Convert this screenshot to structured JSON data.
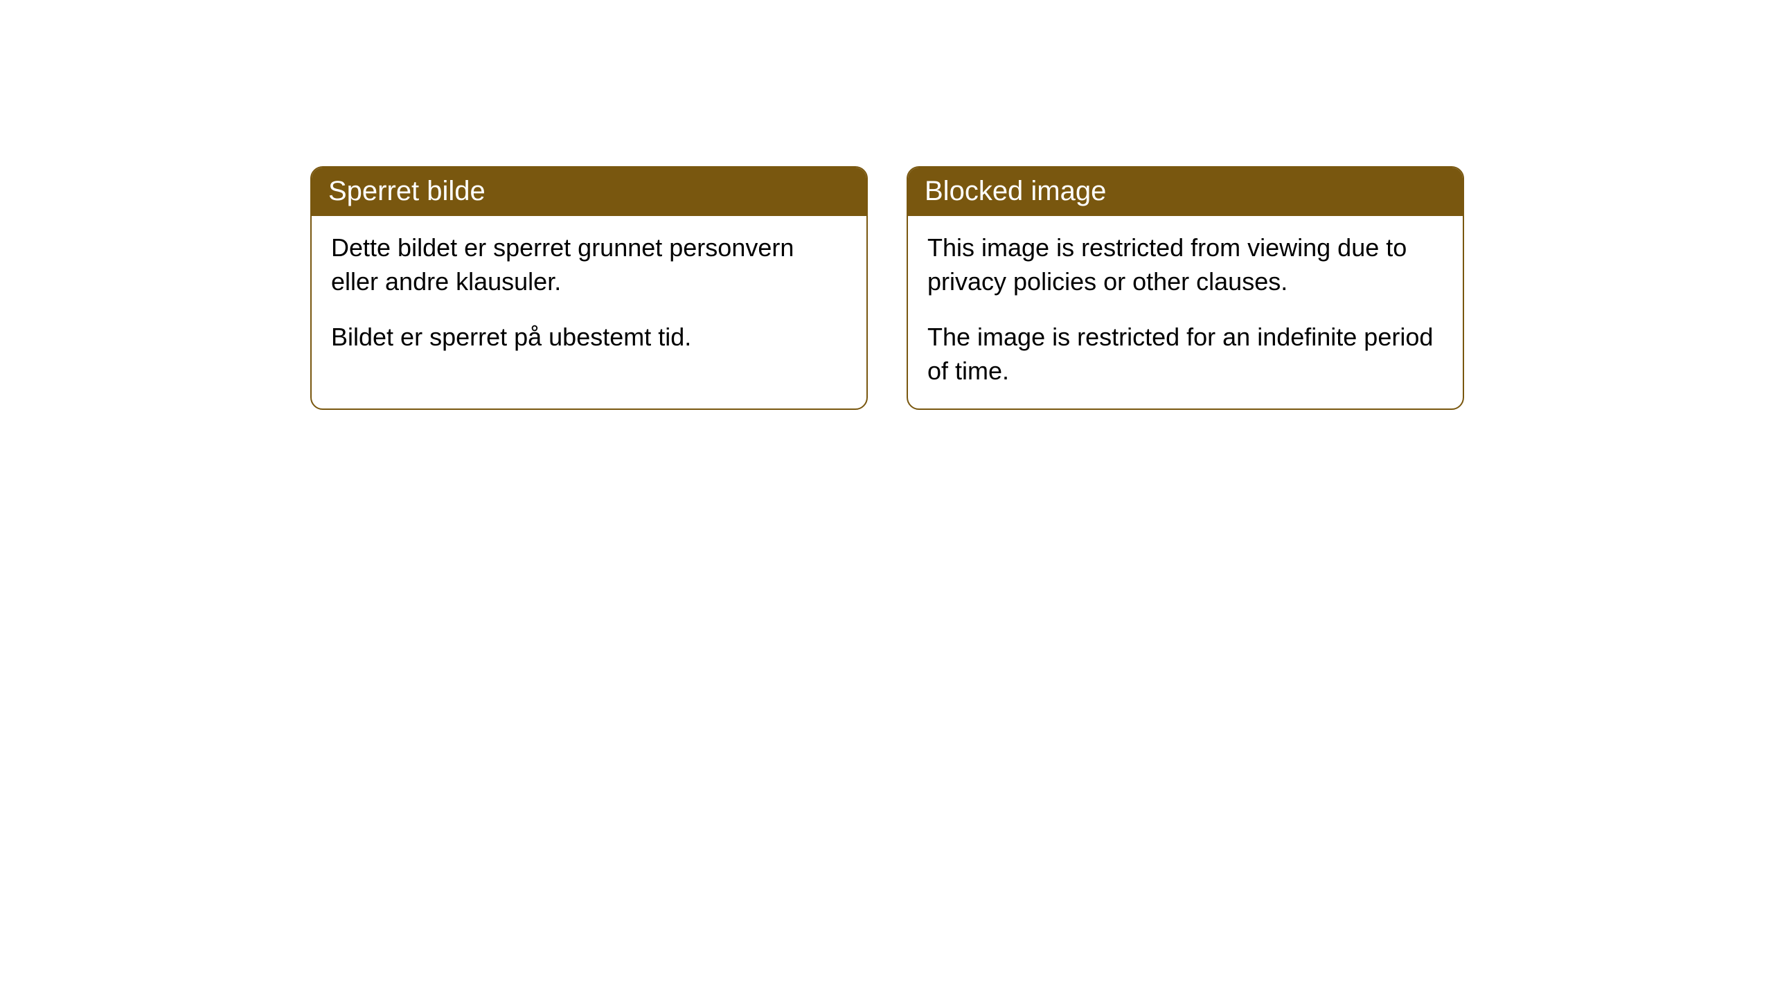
{
  "cards": [
    {
      "title": "Sperret bilde",
      "paragraph1": "Dette bildet er sperret grunnet personvern eller andre klausuler.",
      "paragraph2": "Bildet er sperret på ubestemt tid."
    },
    {
      "title": "Blocked image",
      "paragraph1": "This image is restricted from viewing due to privacy policies or other clauses.",
      "paragraph2": "The image is restricted for an indefinite period of time."
    }
  ],
  "styling": {
    "header_background": "#79570f",
    "header_text_color": "#ffffff",
    "border_color": "#79570f",
    "body_text_color": "#000000",
    "page_background": "#ffffff",
    "border_radius": 18,
    "header_fontsize": 40,
    "body_fontsize": 36
  }
}
